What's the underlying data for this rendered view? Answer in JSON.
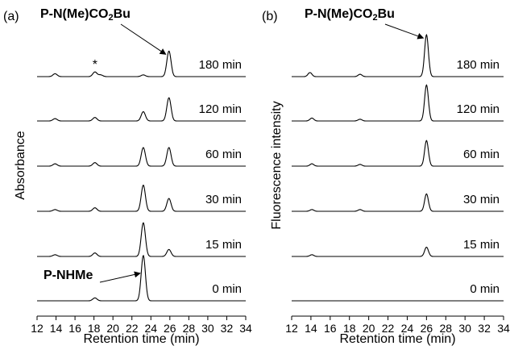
{
  "chart_data": [
    {
      "type": "line",
      "panel_label": "(a)",
      "xlabel": "Retention time (min)",
      "ylabel": "Absorbance",
      "xlim": [
        12,
        34
      ],
      "xticks": [
        "12",
        "14",
        "16",
        "18",
        "20",
        "22",
        "24",
        "26",
        "28",
        "30",
        "32",
        "34"
      ],
      "series": [
        {
          "name": "180 min",
          "peaks": [
            {
              "x": 13.9,
              "h": 0.05
            },
            {
              "x": 18.1,
              "h": 0.08
            },
            {
              "x": 18.7,
              "h": 0.03
            },
            {
              "x": 23.2,
              "h": 0.03
            },
            {
              "x": 25.9,
              "h": 0.44
            }
          ]
        },
        {
          "name": "120 min",
          "peaks": [
            {
              "x": 13.9,
              "h": 0.04
            },
            {
              "x": 18.1,
              "h": 0.06
            },
            {
              "x": 23.2,
              "h": 0.16
            },
            {
              "x": 25.9,
              "h": 0.4
            }
          ]
        },
        {
          "name": "60 min",
          "peaks": [
            {
              "x": 13.9,
              "h": 0.04
            },
            {
              "x": 18.1,
              "h": 0.06
            },
            {
              "x": 23.2,
              "h": 0.32
            },
            {
              "x": 25.9,
              "h": 0.32
            }
          ]
        },
        {
          "name": "30 min",
          "peaks": [
            {
              "x": 13.9,
              "h": 0.03
            },
            {
              "x": 18.1,
              "h": 0.06
            },
            {
              "x": 23.2,
              "h": 0.45
            },
            {
              "x": 25.9,
              "h": 0.22
            }
          ]
        },
        {
          "name": "15 min",
          "peaks": [
            {
              "x": 13.9,
              "h": 0.03
            },
            {
              "x": 18.1,
              "h": 0.06
            },
            {
              "x": 23.2,
              "h": 0.58
            },
            {
              "x": 25.9,
              "h": 0.12
            }
          ]
        },
        {
          "name": "0 min",
          "peaks": [
            {
              "x": 18.1,
              "h": 0.05
            },
            {
              "x": 23.2,
              "h": 0.78
            }
          ]
        }
      ],
      "annotations": [
        {
          "text": "P-N(Me)CO2Bu",
          "points_to": {
            "series": "180 min",
            "x": 25.9
          }
        },
        {
          "text": "*",
          "points_to": {
            "series": "180 min",
            "x": 18.1
          }
        },
        {
          "text": "P-NHMe",
          "points_to": {
            "series": "0 min",
            "x": 23.2
          }
        }
      ]
    },
    {
      "type": "line",
      "panel_label": "(b)",
      "xlabel": "Retention time (min)",
      "ylabel": "Fluorescence intensity",
      "xlim": [
        12,
        34
      ],
      "xticks": [
        "12",
        "14",
        "16",
        "18",
        "20",
        "22",
        "24",
        "26",
        "28",
        "30",
        "32",
        "34"
      ],
      "series": [
        {
          "name": "180 min",
          "peaks": [
            {
              "x": 13.9,
              "h": 0.07
            },
            {
              "x": 19.1,
              "h": 0.04
            },
            {
              "x": 26.0,
              "h": 0.72
            }
          ]
        },
        {
          "name": "120 min",
          "peaks": [
            {
              "x": 14.1,
              "h": 0.05
            },
            {
              "x": 19.1,
              "h": 0.03
            },
            {
              "x": 26.0,
              "h": 0.62
            }
          ]
        },
        {
          "name": "60 min",
          "peaks": [
            {
              "x": 14.1,
              "h": 0.04
            },
            {
              "x": 19.1,
              "h": 0.03
            },
            {
              "x": 26.0,
              "h": 0.44
            }
          ]
        },
        {
          "name": "30 min",
          "peaks": [
            {
              "x": 14.1,
              "h": 0.03
            },
            {
              "x": 19.1,
              "h": 0.03
            },
            {
              "x": 26.0,
              "h": 0.3
            }
          ]
        },
        {
          "name": "15 min",
          "peaks": [
            {
              "x": 14.1,
              "h": 0.03
            },
            {
              "x": 26.0,
              "h": 0.16
            }
          ]
        },
        {
          "name": "0 min",
          "peaks": []
        }
      ],
      "annotations": [
        {
          "text": "P-N(Me)CO2Bu",
          "points_to": {
            "series": "180 min",
            "x": 26.0
          }
        }
      ]
    }
  ]
}
